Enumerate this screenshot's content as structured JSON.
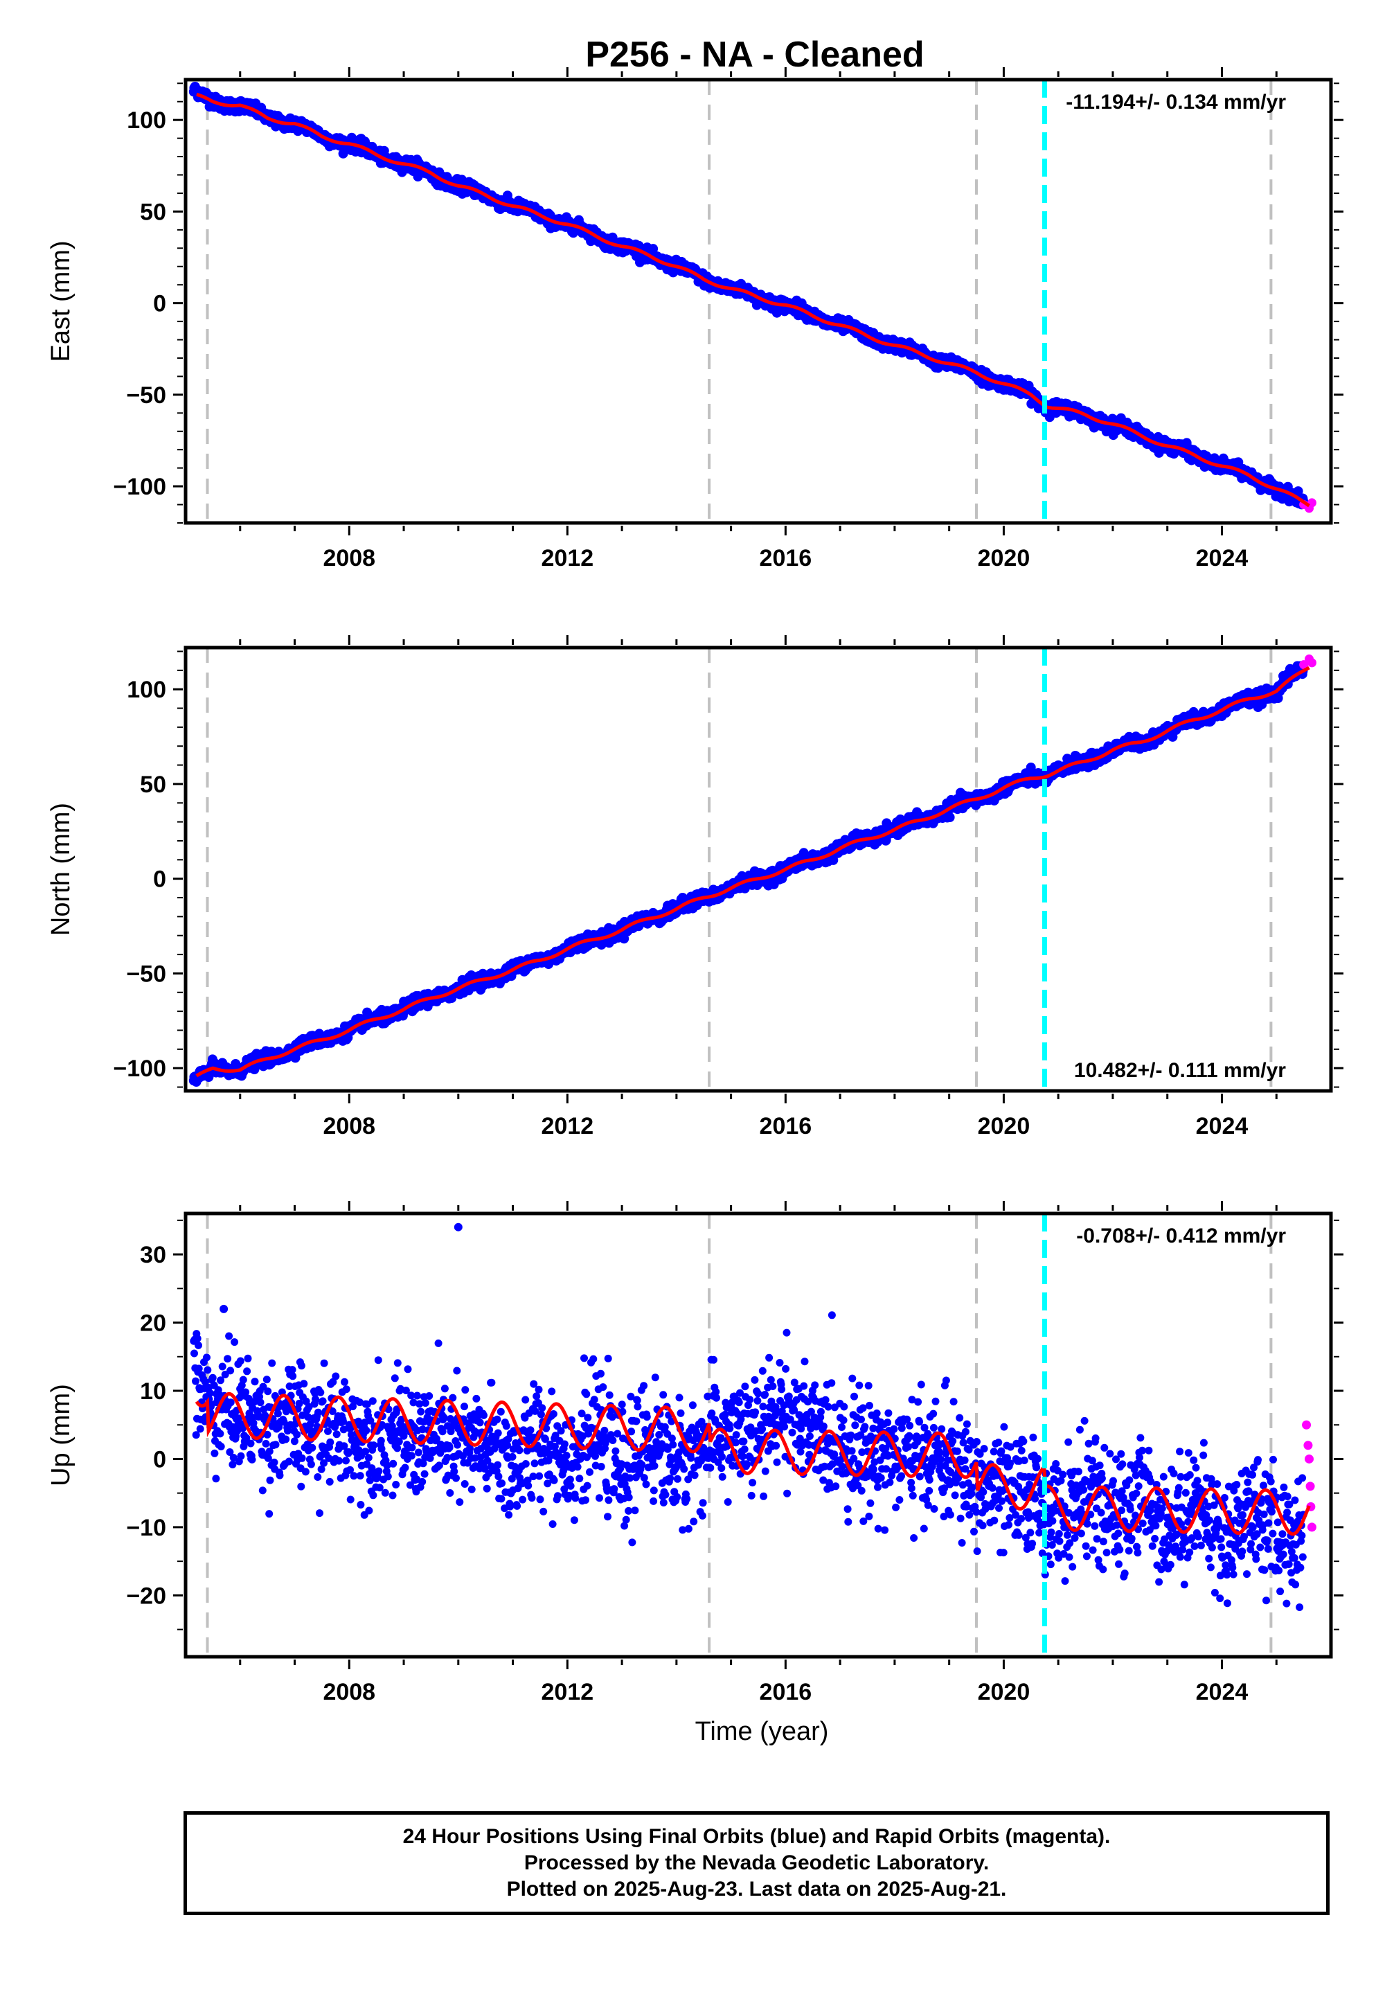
{
  "title": "P256  - NA - Cleaned",
  "colors": {
    "final": "#0000ff",
    "rapid": "#ff00ff",
    "model": "#ff0000",
    "event": "#00ffff",
    "dash": "#c0c0c0"
  },
  "footer": {
    "line1": "24 Hour Positions Using Final Orbits (blue) and Rapid Orbits (magenta).",
    "line2": "Processed by the Nevada Geodetic Laboratory.",
    "line3": "Plotted on 2025-Aug-23. Last data on 2025-Aug-21."
  },
  "chart_data": [
    {
      "type": "scatter",
      "panel": "east",
      "ylabel": "East (mm)",
      "xlim": [
        2005.0,
        2026.0
      ],
      "ylim": [
        -120,
        122
      ],
      "xticks": [
        2008,
        2012,
        2016,
        2020,
        2024
      ],
      "xtick_labels": [
        "2008",
        "2012",
        "2016",
        "2020",
        "2024"
      ],
      "yticks": [
        100,
        50,
        0,
        -50,
        -100
      ],
      "ytick_labels": [
        "100",
        "50",
        "0",
        "−50",
        "−100"
      ],
      "rate_label": "-11.194+/- 0.134 mm/yr",
      "rate_position": "top-right",
      "equipment_change_years": [
        2005.4,
        2014.6,
        2019.5,
        2024.9
      ],
      "event_year": 2020.75,
      "series": [
        {
          "name": "Final Orbits",
          "x": [
            2005.2,
            2005.5,
            2006.0,
            2006.5,
            2007.0,
            2007.5,
            2008.0,
            2008.5,
            2009.0,
            2009.5,
            2010.0,
            2010.5,
            2011.0,
            2011.5,
            2012.0,
            2012.5,
            2013.0,
            2013.5,
            2014.0,
            2014.5,
            2014.8,
            2015.5,
            2016.0,
            2016.5,
            2017.0,
            2017.5,
            2018.0,
            2018.5,
            2019.0,
            2019.5,
            2020.0,
            2020.5,
            2020.8,
            2021.5,
            2022.0,
            2022.5,
            2023.0,
            2023.5,
            2024.0,
            2024.5,
            2024.9,
            2025.4
          ],
          "y": [
            115,
            110,
            108,
            101,
            98,
            91,
            87,
            81,
            76,
            71,
            64,
            59,
            53,
            48,
            43,
            37,
            31,
            26,
            20,
            13,
            10,
            3,
            -1,
            -7,
            -12,
            -18,
            -23,
            -28,
            -33,
            -38,
            -44,
            -50,
            -56,
            -61,
            -66,
            -72,
            -78,
            -83,
            -89,
            -94,
            -100,
            -108
          ]
        },
        {
          "name": "Rapid Orbits",
          "x": [
            2025.5,
            2025.6,
            2025.65
          ],
          "y": [
            -110,
            -112,
            -109
          ]
        },
        {
          "name": "Model",
          "x": [
            2005.2,
            2005.5,
            2006.0,
            2006.5,
            2007.0,
            2007.5,
            2008.0,
            2008.5,
            2009.0,
            2009.5,
            2010.0,
            2010.5,
            2011.0,
            2011.5,
            2012.0,
            2012.5,
            2013.0,
            2013.5,
            2014.0,
            2014.5,
            2014.8,
            2015.5,
            2016.0,
            2016.5,
            2017.0,
            2017.5,
            2018.0,
            2018.5,
            2019.0,
            2019.5,
            2020.0,
            2020.5,
            2020.8,
            2021.5,
            2022.0,
            2022.5,
            2023.0,
            2023.5,
            2024.0,
            2024.5,
            2024.9,
            2025.6
          ],
          "y": [
            113,
            110,
            108,
            101,
            98,
            91,
            87,
            81,
            76,
            71,
            64,
            59,
            53,
            48,
            43,
            37,
            31,
            26,
            20,
            13,
            10,
            3,
            -1,
            -7,
            -12,
            -18,
            -23,
            -28,
            -33,
            -38,
            -44,
            -50,
            -56,
            -61,
            -66,
            -72,
            -78,
            -83,
            -89,
            -94,
            -100,
            -110
          ]
        }
      ]
    },
    {
      "type": "scatter",
      "panel": "north",
      "ylabel": "North (mm)",
      "xlim": [
        2005.0,
        2026.0
      ],
      "ylim": [
        -112,
        122
      ],
      "xticks": [
        2008,
        2012,
        2016,
        2020,
        2024
      ],
      "xtick_labels": [
        "2008",
        "2012",
        "2016",
        "2020",
        "2024"
      ],
      "yticks": [
        100,
        50,
        0,
        -50,
        -100
      ],
      "ytick_labels": [
        "100",
        "50",
        "0",
        "−50",
        "−100"
      ],
      "rate_label": "10.482+/- 0.111 mm/yr",
      "rate_position": "bottom-right",
      "equipment_change_years": [
        2005.4,
        2014.6,
        2019.5,
        2024.9
      ],
      "event_year": 2020.75,
      "series": [
        {
          "name": "Final Orbits",
          "x": [
            2005.2,
            2005.5,
            2006.0,
            2006.5,
            2007.0,
            2007.5,
            2008.0,
            2008.5,
            2009.0,
            2009.5,
            2010.0,
            2010.5,
            2011.0,
            2011.5,
            2012.0,
            2012.5,
            2013.0,
            2013.5,
            2014.0,
            2014.5,
            2015.0,
            2015.5,
            2016.0,
            2016.5,
            2017.0,
            2017.5,
            2018.0,
            2018.5,
            2019.0,
            2019.5,
            2020.0,
            2020.5,
            2020.8,
            2021.5,
            2022.0,
            2022.5,
            2023.0,
            2023.5,
            2024.0,
            2024.5,
            2025.0,
            2025.45
          ],
          "y": [
            -107,
            -100,
            -101,
            -95,
            -90,
            -85,
            -80,
            -74,
            -69,
            -63,
            -58,
            -53,
            -48,
            -43,
            -37,
            -32,
            -27,
            -21,
            -16,
            -10,
            -5,
            0,
            5,
            10,
            16,
            21,
            26,
            31,
            37,
            42,
            48,
            53,
            55,
            62,
            68,
            72,
            78,
            84,
            89,
            95,
            99,
            111
          ]
        },
        {
          "name": "Rapid Orbits",
          "x": [
            2025.5,
            2025.6,
            2025.65
          ],
          "y": [
            113,
            116,
            114
          ]
        },
        {
          "name": "Model",
          "x": [
            2005.2,
            2005.5,
            2006.0,
            2006.5,
            2007.0,
            2007.5,
            2008.0,
            2008.5,
            2009.0,
            2009.5,
            2010.0,
            2010.5,
            2011.0,
            2011.5,
            2012.0,
            2012.5,
            2013.0,
            2013.5,
            2014.0,
            2014.5,
            2015.0,
            2015.5,
            2016.0,
            2016.5,
            2017.0,
            2017.5,
            2018.0,
            2018.5,
            2019.0,
            2019.5,
            2020.0,
            2020.5,
            2020.8,
            2021.5,
            2022.0,
            2022.5,
            2023.0,
            2023.5,
            2024.0,
            2024.5,
            2025.0,
            2025.6
          ],
          "y": [
            -105,
            -100,
            -101,
            -95,
            -90,
            -85,
            -80,
            -74,
            -69,
            -63,
            -58,
            -53,
            -48,
            -43,
            -37,
            -32,
            -27,
            -21,
            -16,
            -10,
            -5,
            0,
            5,
            10,
            16,
            21,
            26,
            31,
            37,
            42,
            48,
            53,
            55,
            62,
            68,
            72,
            78,
            84,
            89,
            95,
            99,
            112
          ]
        }
      ]
    },
    {
      "type": "scatter",
      "panel": "up",
      "ylabel": "Up (mm)",
      "xlabel": "Time (year)",
      "xlim": [
        2005.0,
        2026.0
      ],
      "ylim": [
        -29,
        36
      ],
      "xticks": [
        2008,
        2012,
        2016,
        2020,
        2024
      ],
      "xtick_labels": [
        "2008",
        "2012",
        "2016",
        "2020",
        "2024"
      ],
      "yticks": [
        30,
        20,
        10,
        0,
        -10,
        -20
      ],
      "ytick_labels": [
        "30",
        "20",
        "10",
        "0",
        "−10",
        "−20"
      ],
      "rate_label": "-0.708+/- 0.412 mm/yr",
      "rate_position": "top-right",
      "equipment_change_years": [
        2005.4,
        2014.6,
        2019.5,
        2024.9
      ],
      "event_year": 2020.75,
      "series": [
        {
          "name": "Final Orbits",
          "x": [
            2005.2,
            2005.5,
            2006.0,
            2006.5,
            2007.0,
            2007.5,
            2008.0,
            2008.5,
            2009.0,
            2009.5,
            2010.0,
            2010.5,
            2011.0,
            2011.5,
            2012.0,
            2012.5,
            2013.0,
            2013.5,
            2014.0,
            2014.5,
            2015.0,
            2015.5,
            2016.0,
            2016.5,
            2017.0,
            2017.5,
            2018.0,
            2018.5,
            2019.0,
            2019.5,
            2020.0,
            2020.5,
            2021.0,
            2021.5,
            2022.0,
            2022.5,
            2023.0,
            2023.5,
            2024.0,
            2024.5,
            2025.0,
            2025.45,
            2010.0,
            2005.7
          ],
          "y": [
            12,
            6,
            8,
            4,
            6,
            3,
            5,
            2,
            4,
            2,
            3,
            1,
            0,
            2,
            1,
            3,
            -1,
            2,
            0,
            1,
            5,
            2,
            9,
            2,
            4,
            0,
            2,
            -1,
            1,
            -5,
            -4,
            -6,
            -8,
            -6,
            -8,
            -6,
            -9,
            -7,
            -11,
            -8,
            -10,
            -12,
            34,
            22
          ],
          "note": ""
        },
        {
          "name": "Rapid Orbits",
          "x": [
            2025.55,
            2025.58,
            2025.6,
            2025.62,
            2025.63,
            2025.65
          ],
          "y": [
            5,
            2,
            0,
            -4,
            -7,
            -10
          ]
        },
        {
          "name": "Model",
          "x": [],
          "y": []
        }
      ]
    }
  ]
}
